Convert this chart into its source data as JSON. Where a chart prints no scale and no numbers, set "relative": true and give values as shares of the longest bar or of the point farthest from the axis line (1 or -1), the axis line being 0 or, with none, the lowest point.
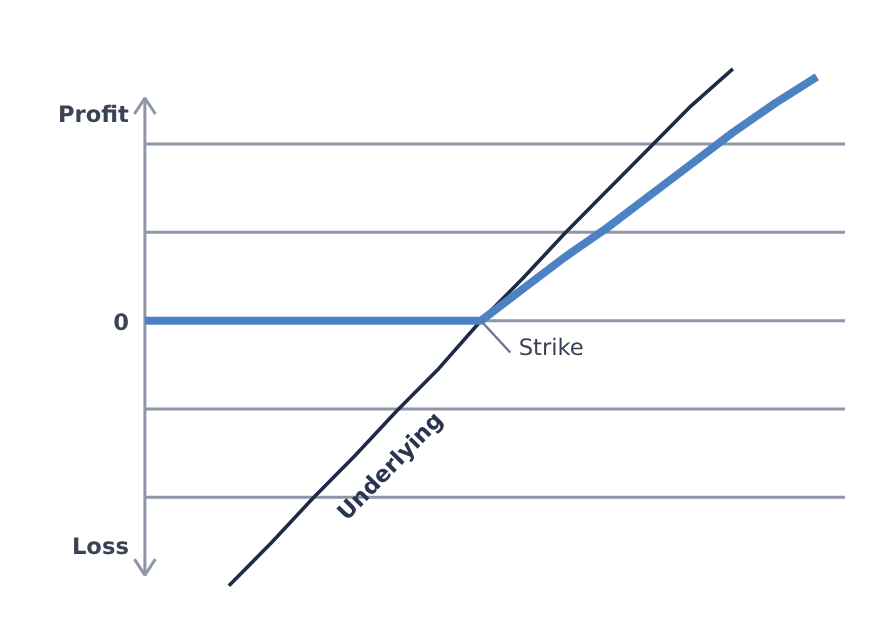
{
  "chart_data": {
    "type": "line",
    "relative": true,
    "categories": [
      null,
      null,
      null,
      null,
      null,
      null,
      null,
      null,
      null,
      null,
      null,
      null,
      null,
      null,
      null,
      null,
      null
    ],
    "series": [
      {
        "name": "Underlying",
        "color": "#1f2b45",
        "values": [
          null,
          null,
          -1.0,
          -0.84,
          -0.67,
          -0.51,
          -0.34,
          -0.18,
          0,
          0.16,
          0.33,
          0.49,
          0.65,
          0.81,
          0.95,
          null,
          null
        ]
      },
      {
        "color": "#4a82c3",
        "values": [
          0,
          0,
          0,
          0,
          0,
          0,
          0,
          0,
          0,
          0.12,
          0.24,
          0.35,
          0.47,
          0.59,
          0.71,
          0.82,
          0.92
        ]
      }
    ],
    "grid": "y",
    "annotations": [
      "Profit",
      "0",
      "Loss",
      "Strike"
    ]
  }
}
